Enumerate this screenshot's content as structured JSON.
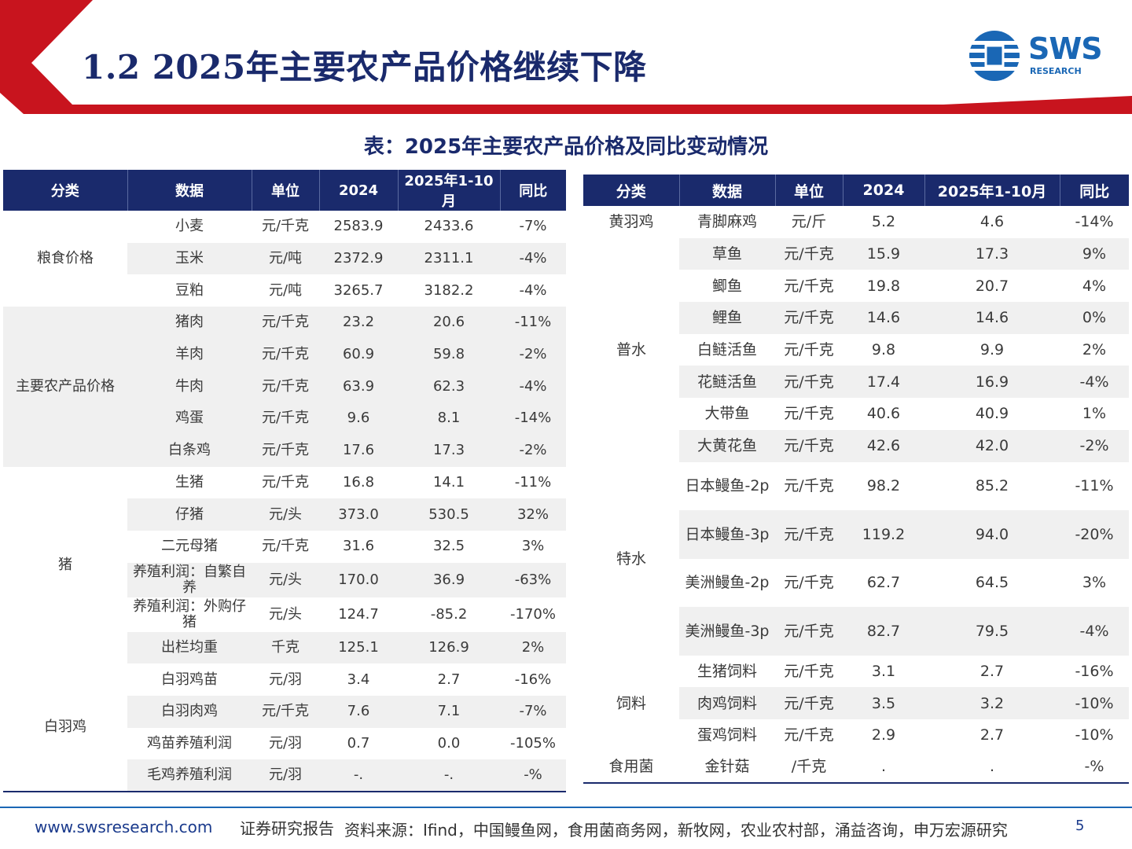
{
  "header": {
    "title": "1.2  2025年主要农产品价格继续下降",
    "logo_text": "SWS",
    "logo_sub": "RESEARCH",
    "accent_color": "#c8141e",
    "brand_color": "#1a2a6c"
  },
  "table_title": "表：2025年主要农产品价格及同比变动情况",
  "left_table": {
    "headers": [
      "分类",
      "数据",
      "单位",
      "2024",
      "2025年1-10月",
      "同比"
    ],
    "groups": [
      {
        "category": "粮食价格",
        "rows": [
          [
            "小麦",
            "元/千克",
            "2583.9",
            "2433.6",
            "-7%"
          ],
          [
            "玉米",
            "元/吨",
            "2372.9",
            "2311.1",
            "-4%"
          ],
          [
            "豆粕",
            "元/吨",
            "3265.7",
            "3182.2",
            "-4%"
          ]
        ]
      },
      {
        "category": "主要农产品价格",
        "rows": [
          [
            "猪肉",
            "元/千克",
            "23.2",
            "20.6",
            "-11%"
          ],
          [
            "羊肉",
            "元/千克",
            "60.9",
            "59.8",
            "-2%"
          ],
          [
            "牛肉",
            "元/千克",
            "63.9",
            "62.3",
            "-4%"
          ],
          [
            "鸡蛋",
            "元/千克",
            "9.6",
            "8.1",
            "-14%"
          ],
          [
            "白条鸡",
            "元/千克",
            "17.6",
            "17.3",
            "-2%"
          ]
        ]
      },
      {
        "category": "猪",
        "rows": [
          [
            "生猪",
            "元/千克",
            "16.8",
            "14.1",
            "-11%"
          ],
          [
            "仔猪",
            "元/头",
            "373.0",
            "530.5",
            "32%"
          ],
          [
            "二元母猪",
            "元/千克",
            "31.6",
            "32.5",
            "3%"
          ],
          [
            "养殖利润：自繁自养",
            "元/头",
            "170.0",
            "36.9",
            "-63%"
          ],
          [
            "养殖利润：外购仔猪",
            "元/头",
            "124.7",
            "-85.2",
            "-170%"
          ],
          [
            "出栏均重",
            "千克",
            "125.1",
            "126.9",
            "2%"
          ]
        ]
      },
      {
        "category": "白羽鸡",
        "rows": [
          [
            "白羽鸡苗",
            "元/羽",
            "3.4",
            "2.7",
            "-16%"
          ],
          [
            "白羽肉鸡",
            "元/千克",
            "7.6",
            "7.1",
            "-7%"
          ],
          [
            "鸡苗养殖利润",
            "元/羽",
            "0.7",
            "0.0",
            "-105%"
          ],
          [
            "毛鸡养殖利润",
            "元/羽",
            "-.",
            "-.",
            "-%"
          ]
        ]
      }
    ]
  },
  "right_table": {
    "headers": [
      "分类",
      "数据",
      "单位",
      "2024",
      "2025年1-10月",
      "同比"
    ],
    "groups": [
      {
        "category": "黄羽鸡",
        "rows": [
          [
            "青脚麻鸡",
            "元/斤",
            "5.2",
            "4.6",
            "-14%"
          ]
        ]
      },
      {
        "category": "普水",
        "rows": [
          [
            "草鱼",
            "元/千克",
            "15.9",
            "17.3",
            "9%"
          ],
          [
            "鲫鱼",
            "元/千克",
            "19.8",
            "20.7",
            "4%"
          ],
          [
            "鲤鱼",
            "元/千克",
            "14.6",
            "14.6",
            "0%"
          ],
          [
            "白鲢活鱼",
            "元/千克",
            "9.8",
            "9.9",
            "2%"
          ],
          [
            "花鲢活鱼",
            "元/千克",
            "17.4",
            "16.9",
            "-4%"
          ],
          [
            "大带鱼",
            "元/千克",
            "40.6",
            "40.9",
            "1%"
          ],
          [
            "大黄花鱼",
            "元/千克",
            "42.6",
            "42.0",
            "-2%"
          ]
        ]
      },
      {
        "category": "特水",
        "rows": [
          [
            "日本鳗鱼-2p",
            "元/千克",
            "98.2",
            "85.2",
            "-11%"
          ],
          [
            "日本鳗鱼-3p",
            "元/千克",
            "119.2",
            "94.0",
            "-20%"
          ],
          [
            "美洲鳗鱼-2p",
            "元/千克",
            "62.7",
            "64.5",
            "3%"
          ],
          [
            "美洲鳗鱼-3p",
            "元/千克",
            "82.7",
            "79.5",
            "-4%"
          ]
        ]
      },
      {
        "category": "饲料",
        "rows": [
          [
            "生猪饲料",
            "元/千克",
            "3.1",
            "2.7",
            "-16%"
          ],
          [
            "肉鸡饲料",
            "元/千克",
            "3.5",
            "3.2",
            "-10%"
          ],
          [
            "蛋鸡饲料",
            "元/千克",
            "2.9",
            "2.7",
            "-10%"
          ]
        ]
      },
      {
        "category": "食用菌",
        "rows": [
          [
            "金针菇",
            "/千克",
            ".",
            ".",
            "-%"
          ]
        ]
      }
    ]
  },
  "footer": {
    "url": "www.swsresearch.com",
    "report": "证券研究报告",
    "source": "资料来源：Ifind，中国鳗鱼网，食用菌商务网，新牧网，农业农村部，涌益咨询，申万宏源研究",
    "page": "5"
  }
}
